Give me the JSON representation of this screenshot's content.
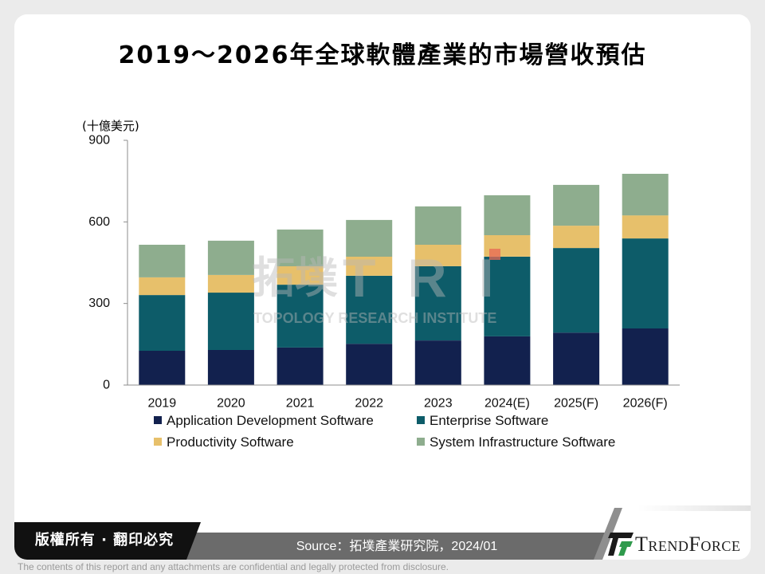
{
  "slide": {
    "copyright": "版權所有 · 翻印必究",
    "source": "Source：拓墣產業研究院，2024/01",
    "disclaimer": "The contents of this report and any attachments are confidential and legally protected from disclosure.",
    "logo_text": "TrendForce",
    "logo_icon": "trendforce-logo-icon"
  },
  "watermark": {
    "logo_cn": "拓墣",
    "logo_en": "TRI",
    "subtitle": "TOPOLOGY RESEARCH INSTITUTE"
  },
  "colors": {
    "page_bg": "#ebebeb",
    "card_bg": "#ffffff",
    "copyright_bg": "#111111",
    "source_bar": "#6b6b6b",
    "logo_green": "#2f9a4c",
    "logo_black": "#1a1a1a",
    "axis": "#8c8c8c"
  },
  "chart_data": {
    "type": "bar",
    "stacked": true,
    "title": "2019～2026年全球軟體產業的市場營收預估",
    "xlabel": "",
    "ylabel": "(十億美元)",
    "ylim": [
      0,
      900
    ],
    "yticks": [
      0,
      300,
      600,
      900
    ],
    "grid": false,
    "legend": "bottom",
    "categories": [
      "2019",
      "2020",
      "2021",
      "2022",
      "2023",
      "2024(E)",
      "2025(F)",
      "2026(F)"
    ],
    "series": [
      {
        "name": "Application Development Software",
        "color": "#12214e",
        "values": [
          126,
          129,
          138,
          152,
          164,
          179,
          193,
          208
        ]
      },
      {
        "name": "Enterprise Software",
        "color": "#0d5c69",
        "values": [
          205,
          211,
          231,
          250,
          273,
          293,
          311,
          331
        ]
      },
      {
        "name": "Productivity Software",
        "color": "#e7c06b",
        "values": [
          65,
          65,
          68,
          70,
          79,
          79,
          82,
          85
        ]
      },
      {
        "name": "System Infrastructure Software",
        "color": "#8ead8e",
        "values": [
          120,
          126,
          135,
          135,
          141,
          147,
          150,
          153
        ]
      }
    ]
  }
}
